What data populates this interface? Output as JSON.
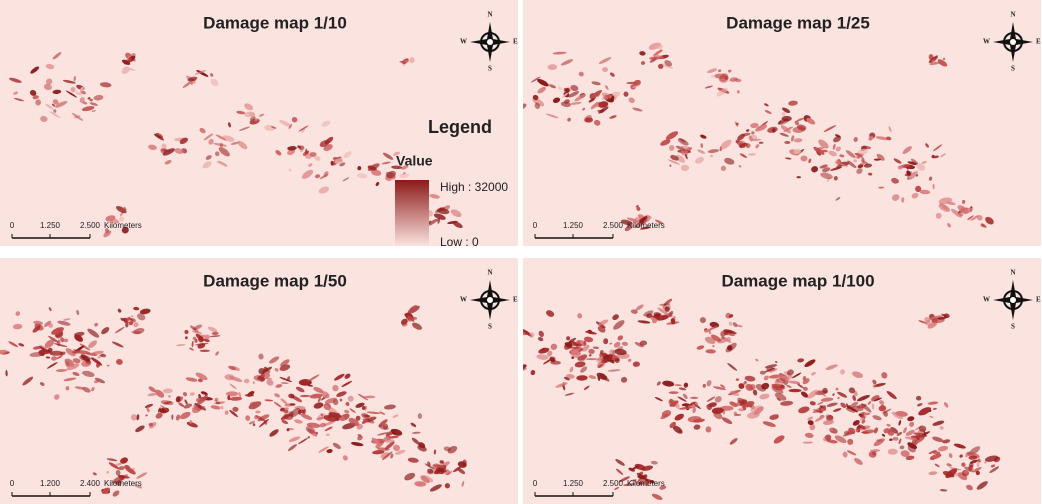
{
  "panels": [
    {
      "title": "Damage map 1/10",
      "compass": {
        "n": "N",
        "w": "W",
        "e": "E",
        "s": "S"
      },
      "scale_bar": {
        "labels": [
          "0",
          "1.250",
          "2.500"
        ],
        "unit": "Kilometers"
      }
    },
    {
      "title": "Damage map 1/25",
      "compass": {
        "n": "N",
        "w": "W",
        "e": "E",
        "s": "S"
      },
      "scale_bar": {
        "labels": [
          "0",
          "1.250",
          "2.500"
        ],
        "unit": "Kilometers"
      }
    },
    {
      "title": "Damage map 1/50",
      "compass": {
        "n": "N",
        "w": "W",
        "e": "E",
        "s": "S"
      },
      "scale_bar": {
        "labels": [
          "0",
          "1.200",
          "2.400"
        ],
        "unit": "Kilometers"
      }
    },
    {
      "title": "Damage map 1/100",
      "compass": {
        "n": "N",
        "w": "W",
        "e": "E",
        "s": "S"
      },
      "scale_bar": {
        "labels": [
          "0",
          "1.250",
          "2.500"
        ],
        "unit": "Kilometers"
      }
    }
  ],
  "legend": {
    "title": "Legend",
    "heading": "Value",
    "high": "High : 32000",
    "low": "Low : 0"
  }
}
